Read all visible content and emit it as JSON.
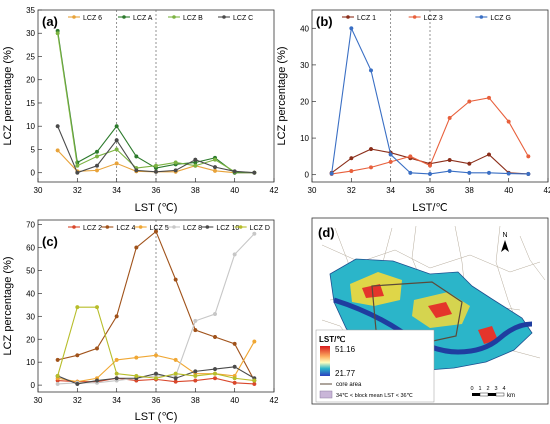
{
  "chart_data": [
    {
      "type": "line",
      "panel_label": "(a)",
      "xlabel": "LST (℃)",
      "ylabel": "LCZ percentage (%)",
      "xlim": [
        30,
        42
      ],
      "ylim": [
        -2,
        35
      ],
      "xticks": [
        "30",
        "32",
        "34",
        "36",
        "38",
        "40",
        "42"
      ],
      "yticks": [
        "0",
        "5",
        "10",
        "15",
        "20",
        "25",
        "30",
        "35"
      ],
      "ref_lines": [
        34,
        36
      ],
      "legend_position": "top",
      "x": [
        31,
        32,
        33,
        34,
        35,
        36,
        37,
        38,
        39,
        40,
        41
      ],
      "series": [
        {
          "name": "LCZ 6",
          "color": "#e8a33a",
          "values": [
            4.8,
            0.3,
            0.5,
            2,
            0.3,
            0.2,
            0.2,
            1.5,
            0.4,
            0,
            0
          ]
        },
        {
          "name": "LCZ A",
          "color": "#2c7a2c",
          "values": [
            30.5,
            2.2,
            4.5,
            10,
            3.5,
            1,
            1.8,
            2.2,
            3.2,
            0,
            0
          ]
        },
        {
          "name": "LCZ B",
          "color": "#7cb342",
          "values": [
            30,
            1.5,
            3.5,
            5,
            1,
            1.5,
            2.2,
            1.5,
            2.8,
            0.2,
            0
          ]
        },
        {
          "name": "LCZ C",
          "color": "#4a4a4a",
          "values": [
            10,
            0,
            1.5,
            7,
            0.5,
            0.2,
            0.5,
            2.8,
            1.2,
            0.3,
            0
          ]
        }
      ]
    },
    {
      "type": "line",
      "panel_label": "(b)",
      "xlabel": "LST/℃",
      "ylabel": "LCZ percentage (%)",
      "xlim": [
        30,
        42
      ],
      "ylim": [
        -2,
        45
      ],
      "xticks": [
        "30",
        "32",
        "34",
        "36",
        "38",
        "40",
        "42"
      ],
      "yticks": [
        "0",
        "10",
        "20",
        "30",
        "40"
      ],
      "ref_lines": [
        34,
        36
      ],
      "legend_position": "top",
      "x": [
        31,
        32,
        33,
        34,
        35,
        36,
        37,
        38,
        39,
        40,
        41
      ],
      "series": [
        {
          "name": "LCZ 1",
          "color": "#8b2e1a",
          "values": [
            0.5,
            4.5,
            7,
            6,
            4.5,
            3,
            4,
            3,
            5.5,
            0.5,
            0.2
          ]
        },
        {
          "name": "LCZ 3",
          "color": "#e8603c",
          "values": [
            0.2,
            1,
            2,
            3.5,
            5,
            2.5,
            15.5,
            20,
            21,
            14.5,
            5
          ]
        },
        {
          "name": "LCZ G",
          "color": "#3a6fc4",
          "values": [
            0.3,
            40,
            28.5,
            5.5,
            0.5,
            0.2,
            1,
            0.5,
            0.5,
            0.3,
            0.2
          ]
        }
      ]
    },
    {
      "type": "line",
      "panel_label": "(c)",
      "xlabel": "LST (℃)",
      "ylabel": "LCZ percentage (%)",
      "xlim": [
        30,
        42
      ],
      "ylim": [
        -3,
        72
      ],
      "xticks": [
        "30",
        "32",
        "34",
        "36",
        "38",
        "40",
        "42"
      ],
      "yticks": [
        "0",
        "10",
        "20",
        "30",
        "40",
        "50",
        "60",
        "70"
      ],
      "ref_lines": [
        36
      ],
      "legend_position": "top",
      "x": [
        31,
        32,
        33,
        34,
        35,
        36,
        37,
        38,
        39,
        40,
        41
      ],
      "series": [
        {
          "name": "LCZ 2",
          "color": "#d9472b",
          "values": [
            2,
            1.5,
            1.5,
            3,
            2,
            2.5,
            1.5,
            2,
            3,
            1,
            0.5
          ]
        },
        {
          "name": "LCZ 4",
          "color": "#a0521a",
          "values": [
            11,
            13,
            16,
            30,
            60,
            67,
            46,
            24,
            21,
            18,
            2
          ]
        },
        {
          "name": "LCZ 5",
          "color": "#f0a733",
          "values": [
            3,
            1.5,
            3,
            11,
            12,
            13,
            11,
            5,
            5,
            4,
            19
          ]
        },
        {
          "name": "LCZ 8",
          "color": "#c7c7c7",
          "values": [
            0.5,
            1,
            1,
            2,
            3,
            4,
            4,
            28,
            31,
            57,
            66
          ]
        },
        {
          "name": "LCZ 10",
          "color": "#4a4a4a",
          "values": [
            4,
            0.5,
            2,
            3,
            3,
            5,
            3,
            6,
            7,
            8,
            3
          ]
        },
        {
          "name": "LCZ D",
          "color": "#b7bd2a",
          "values": [
            4,
            34,
            34,
            5,
            4,
            3,
            5,
            4,
            5,
            3,
            2
          ]
        }
      ]
    }
  ],
  "map_panel": {
    "panel_label": "(d)",
    "north_label": "N",
    "legend_title": "LST/℃",
    "legend_max": "51.16",
    "legend_min": "21.77",
    "core_area_label": "core area",
    "block_label": "34℃ < block mean LST < 36℃",
    "scale_ticks": [
      "0",
      "1",
      "2",
      "3",
      "4"
    ],
    "scale_unit": "km"
  }
}
